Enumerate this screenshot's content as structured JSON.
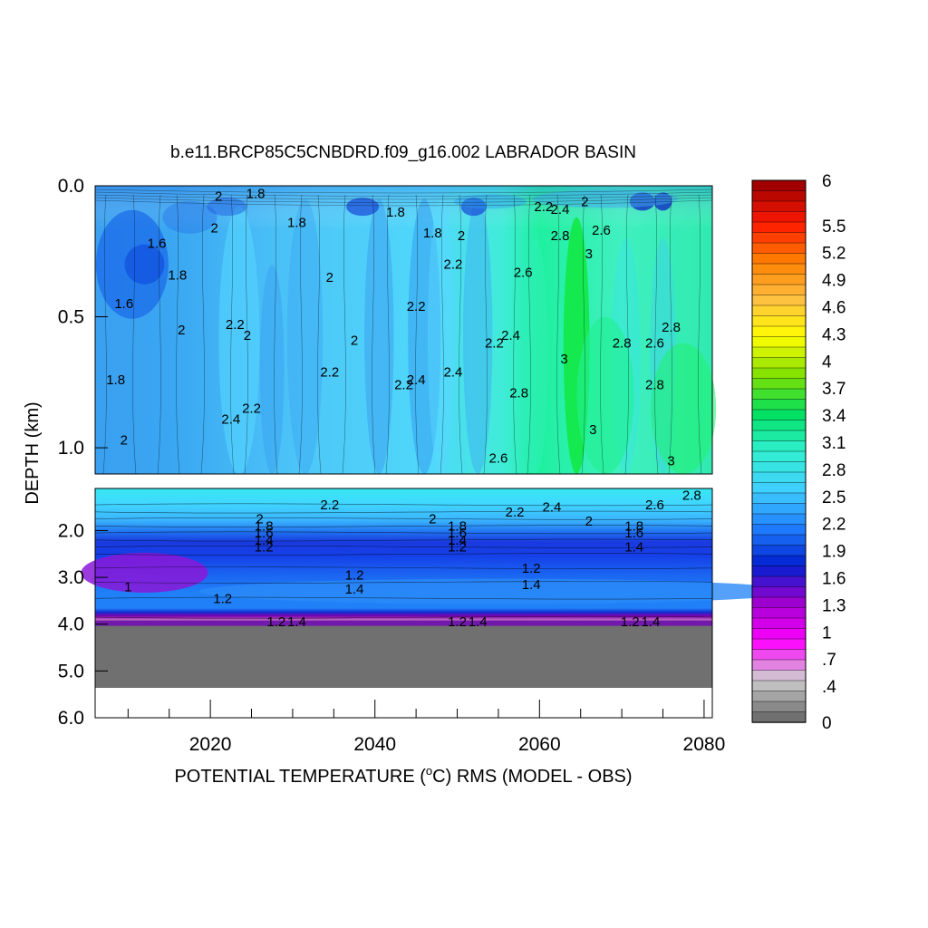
{
  "chart_data": {
    "type": "heatmap",
    "title": "b.e11.BRCP85C5CNBDRD.f09_g16.002 LABRADOR BASIN",
    "xlabel_prefix": "POTENTIAL TEMPERATURE (",
    "xlabel_degree": "o",
    "xlabel_suffix": "C) RMS (MODEL - OBS)",
    "ylabel": "DEPTH (km)",
    "x_ticks": [
      "2020",
      "2040",
      "2060",
      "2080"
    ],
    "x_tick_values": [
      2020,
      2040,
      2060,
      2080
    ],
    "xlim": [
      2006,
      2081
    ],
    "upper_panel": {
      "ylim": [
        0.0,
        1.1
      ],
      "y_ticks": [
        "0.0",
        "0.5",
        "1.0"
      ],
      "y_tick_values": [
        0.0,
        0.5,
        1.0
      ]
    },
    "lower_panel": {
      "ylim": [
        1.1,
        6.0
      ],
      "y_ticks": [
        "2.0",
        "3.0",
        "4.0",
        "5.0",
        "6.0"
      ],
      "y_tick_values": [
        2.0,
        3.0,
        4.0,
        5.0,
        6.0
      ]
    },
    "colorbar": {
      "labels": [
        "6",
        "5.5",
        "5.2",
        "4.9",
        "4.6",
        "4.3",
        "4",
        "3.7",
        "3.4",
        "3.1",
        "2.8",
        "2.5",
        "2.2",
        "1.9",
        "1.6",
        "1.3",
        "1",
        ".7",
        ".4",
        "0"
      ],
      "label_values": [
        6.0,
        5.5,
        5.2,
        4.9,
        4.6,
        4.3,
        4.0,
        3.7,
        3.4,
        3.1,
        2.8,
        2.5,
        2.2,
        1.9,
        1.6,
        1.3,
        1.0,
        0.7,
        0.4,
        0.0
      ],
      "colors": [
        "#a00000",
        "#ff1a00",
        "#ff8000",
        "#ffc040",
        "#ffff00",
        "#80e000",
        "#00e060",
        "#30f0d0",
        "#40d0ff",
        "#2080ff",
        "#0020d0",
        "#a000d0",
        "#ff00ff",
        "#d0d0d0",
        "#707070"
      ]
    },
    "contour_labels_upper": [
      {
        "text": "2",
        "x": 2021,
        "y": 0.04
      },
      {
        "text": "1.8",
        "x": 2025.5,
        "y": 0.03
      },
      {
        "text": "2",
        "x": 2020.5,
        "y": 0.16
      },
      {
        "text": "1.8",
        "x": 2030.5,
        "y": 0.14
      },
      {
        "text": "1.6",
        "x": 2013.5,
        "y": 0.22
      },
      {
        "text": "1.8",
        "x": 2016,
        "y": 0.34
      },
      {
        "text": "2",
        "x": 2034.5,
        "y": 0.35
      },
      {
        "text": "1.6",
        "x": 2009.5,
        "y": 0.45
      },
      {
        "text": "2.2",
        "x": 2045,
        "y": 0.46
      },
      {
        "text": "2",
        "x": 2016.5,
        "y": 0.55
      },
      {
        "text": "2.2",
        "x": 2023,
        "y": 0.53
      },
      {
        "text": "2",
        "x": 2024.5,
        "y": 0.57
      },
      {
        "text": "2",
        "x": 2037.5,
        "y": 0.59
      },
      {
        "text": "2.2",
        "x": 2034.5,
        "y": 0.71
      },
      {
        "text": "1.8",
        "x": 2008.5,
        "y": 0.74
      },
      {
        "text": "2.2",
        "x": 2043.5,
        "y": 0.76
      },
      {
        "text": "2.4",
        "x": 2045,
        "y": 0.74
      },
      {
        "text": "2.4",
        "x": 2049.5,
        "y": 0.71
      },
      {
        "text": "2.2",
        "x": 2054.5,
        "y": 0.6
      },
      {
        "text": "2.4",
        "x": 2056.5,
        "y": 0.57
      },
      {
        "text": "2.8",
        "x": 2057.5,
        "y": 0.79
      },
      {
        "text": "2.2",
        "x": 2025,
        "y": 0.85
      },
      {
        "text": "2.4",
        "x": 2022.5,
        "y": 0.89
      },
      {
        "text": "2",
        "x": 2009.5,
        "y": 0.97
      },
      {
        "text": "2.6",
        "x": 2055,
        "y": 1.04
      },
      {
        "text": "1.8",
        "x": 2042.5,
        "y": 0.1
      },
      {
        "text": "1.8",
        "x": 2047,
        "y": 0.18
      },
      {
        "text": "2",
        "x": 2050.5,
        "y": 0.19
      },
      {
        "text": "2.2",
        "x": 2049.5,
        "y": 0.3
      },
      {
        "text": "2.6",
        "x": 2058,
        "y": 0.33
      },
      {
        "text": "2.2",
        "x": 2060.5,
        "y": 0.08
      },
      {
        "text": "2.4",
        "x": 2062.5,
        "y": 0.09
      },
      {
        "text": "2",
        "x": 2065.5,
        "y": 0.06
      },
      {
        "text": "2.6",
        "x": 2067.5,
        "y": 0.17
      },
      {
        "text": "2.8",
        "x": 2062.5,
        "y": 0.19
      },
      {
        "text": "3",
        "x": 2066,
        "y": 0.26
      },
      {
        "text": "3",
        "x": 2063,
        "y": 0.66
      },
      {
        "text": "2.8",
        "x": 2070,
        "y": 0.6
      },
      {
        "text": "2.6",
        "x": 2074,
        "y": 0.6
      },
      {
        "text": "2.8",
        "x": 2076,
        "y": 0.54
      },
      {
        "text": "2.8",
        "x": 2074,
        "y": 0.76
      },
      {
        "text": "3",
        "x": 2066.5,
        "y": 0.93
      },
      {
        "text": "3",
        "x": 2076,
        "y": 1.05
      }
    ],
    "contour_labels_lower": [
      {
        "text": "2.2",
        "x": 2034.5,
        "y": 1.45
      },
      {
        "text": "2.2",
        "x": 2057,
        "y": 1.6
      },
      {
        "text": "2.4",
        "x": 2061.5,
        "y": 1.5
      },
      {
        "text": "2.6",
        "x": 2074,
        "y": 1.45
      },
      {
        "text": "2.8",
        "x": 2078.5,
        "y": 1.25
      },
      {
        "text": "2",
        "x": 2026,
        "y": 1.75
      },
      {
        "text": "1.8",
        "x": 2026.5,
        "y": 1.9
      },
      {
        "text": "1.6",
        "x": 2026.5,
        "y": 2.05
      },
      {
        "text": "1.4",
        "x": 2026.5,
        "y": 2.2
      },
      {
        "text": "1.2",
        "x": 2026.5,
        "y": 2.35
      },
      {
        "text": "2",
        "x": 2047,
        "y": 1.75
      },
      {
        "text": "1.8",
        "x": 2050,
        "y": 1.9
      },
      {
        "text": "1.6",
        "x": 2050,
        "y": 2.05
      },
      {
        "text": "1.4",
        "x": 2050,
        "y": 2.2
      },
      {
        "text": "1.2",
        "x": 2050,
        "y": 2.35
      },
      {
        "text": "2",
        "x": 2066,
        "y": 1.8
      },
      {
        "text": "1.8",
        "x": 2071.5,
        "y": 1.9
      },
      {
        "text": "1.6",
        "x": 2071.5,
        "y": 2.05
      },
      {
        "text": "1.4",
        "x": 2071.5,
        "y": 2.35
      },
      {
        "text": "1.2",
        "x": 2059,
        "y": 2.8
      },
      {
        "text": "1.2",
        "x": 2037.5,
        "y": 2.95
      },
      {
        "text": "1.4",
        "x": 2037.5,
        "y": 3.25
      },
      {
        "text": "1.4",
        "x": 2059,
        "y": 3.15
      },
      {
        "text": "1",
        "x": 2010,
        "y": 3.2
      },
      {
        "text": "1.2",
        "x": 2021.5,
        "y": 3.45
      },
      {
        "text": "1.2",
        "x": 2028,
        "y": 3.95
      },
      {
        "text": "1.4",
        "x": 2030.5,
        "y": 3.95
      },
      {
        "text": "1.2",
        "x": 2050,
        "y": 3.95
      },
      {
        "text": "1.4",
        "x": 2052.5,
        "y": 3.95
      },
      {
        "text": "1.2",
        "x": 2071,
        "y": 3.95
      },
      {
        "text": "1.4",
        "x": 2073.5,
        "y": 3.95
      }
    ]
  }
}
